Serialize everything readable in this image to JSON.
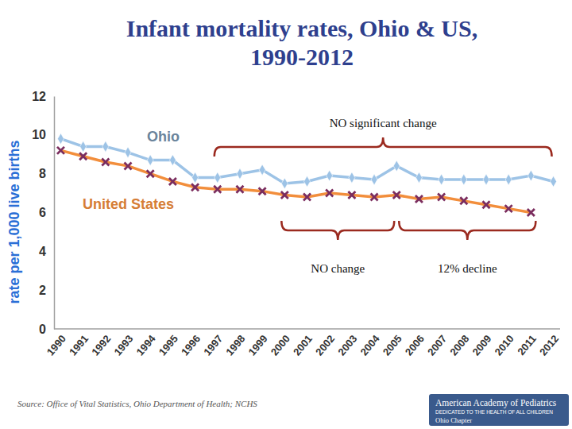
{
  "chart_data": {
    "type": "line",
    "title": "Infant mortality rates, Ohio & US, 1990-2012",
    "y_label": "rate per 1,000 live births",
    "categories": [
      "1990",
      "1991",
      "1992",
      "1993",
      "1994",
      "1995",
      "1996",
      "1997",
      "1998",
      "1999",
      "2000",
      "2001",
      "2002",
      "2003",
      "2004",
      "2005",
      "2006",
      "2007",
      "2008",
      "2009",
      "2010",
      "2011",
      "2012"
    ],
    "series": [
      {
        "name": "Ohio",
        "color": "#9dc3e6",
        "marker": "diamond",
        "line_style": "solid",
        "values": [
          9.8,
          9.4,
          9.4,
          9.1,
          8.7,
          8.7,
          7.8,
          7.8,
          8.0,
          8.2,
          7.5,
          7.6,
          7.9,
          7.8,
          7.7,
          8.4,
          7.8,
          7.7,
          7.7,
          7.7,
          7.7,
          7.9,
          7.6
        ]
      },
      {
        "name": "United States",
        "color": "#f28e3c",
        "marker": "x",
        "line_style": "solid",
        "values": [
          9.2,
          8.9,
          8.6,
          8.4,
          8.0,
          7.6,
          7.3,
          7.2,
          7.2,
          7.1,
          6.9,
          6.8,
          7.0,
          6.9,
          6.8,
          6.9,
          6.7,
          6.8,
          6.6,
          6.4,
          6.2,
          6.0,
          null
        ]
      }
    ],
    "ylim": [
      0,
      12
    ],
    "yticks": [
      0,
      2,
      4,
      6,
      8,
      10,
      12
    ],
    "grid": false,
    "annotations": [
      {
        "text": "NO significant change"
      },
      {
        "text": "NO change"
      },
      {
        "text": "12% decline"
      }
    ],
    "source": "Source: Office of Vital Statistics, Ohio Department of Health; NCHS"
  },
  "footer": {
    "organization": "American Academy of Pediatrics",
    "tagline": "DEDICATED TO THE HEALTH OF ALL CHILDREN",
    "chapter": "Ohio Chapter"
  }
}
